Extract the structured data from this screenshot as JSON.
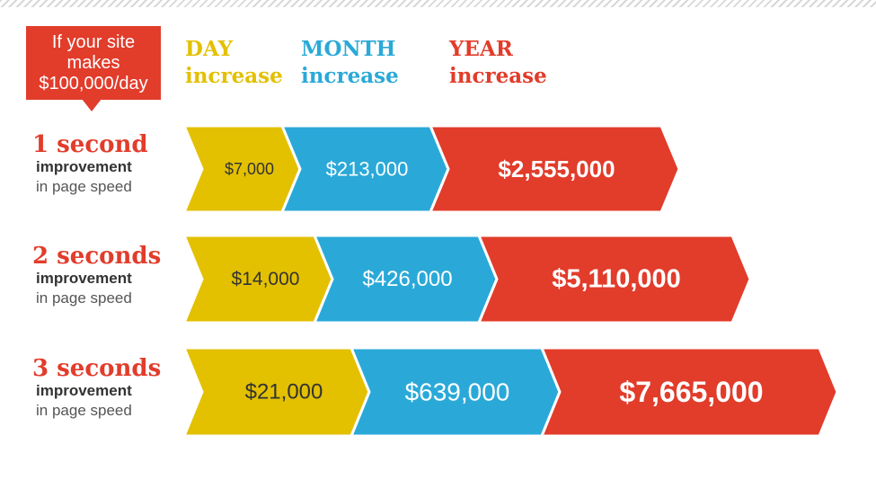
{
  "header": {
    "callout_lines": [
      "If your site",
      "makes",
      "$100,000/day"
    ],
    "columns": [
      {
        "top": "DAY",
        "bottom": "increase",
        "color": "#e3c000"
      },
      {
        "top": "MONTH",
        "bottom": "increase",
        "color": "#2aa9d8"
      },
      {
        "top": "YEAR",
        "bottom": "increase",
        "color": "#e23c2b"
      }
    ]
  },
  "rows": [
    {
      "title": "1 second",
      "sub1": "improvement",
      "sub2": "in page speed"
    },
    {
      "title": "2 seconds",
      "sub1": "improvement",
      "sub2": "in page speed"
    },
    {
      "title": "3 seconds",
      "sub1": "improvement",
      "sub2": "in page speed"
    }
  ],
  "chart_data": {
    "type": "bar",
    "orientation": "horizontal",
    "stacked": true,
    "categories": [
      "1 second",
      "2 seconds",
      "3 seconds"
    ],
    "series": [
      {
        "name": "DAY increase",
        "color": "#e3c000",
        "text_color": "#333333",
        "values": [
          7000,
          14000,
          21000
        ],
        "labels": [
          "$7,000",
          "$14,000",
          "$21,000"
        ]
      },
      {
        "name": "MONTH increase",
        "color": "#2aa9d8",
        "text_color": "#ffffff",
        "values": [
          213000,
          426000,
          639000
        ],
        "labels": [
          "$213,000",
          "$426,000",
          "$639,000"
        ]
      },
      {
        "name": "YEAR increase",
        "color": "#e23c2b",
        "text_color": "#ffffff",
        "values": [
          2555000,
          5110000,
          7665000
        ],
        "labels": [
          "$2,555,000",
          "$5,110,000",
          "$7,665,000"
        ]
      }
    ]
  }
}
